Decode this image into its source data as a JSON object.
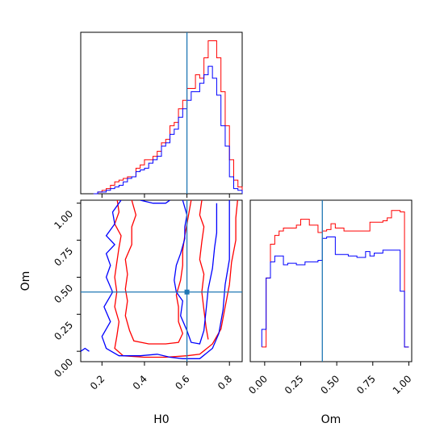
{
  "chart_data": {
    "type": "corner",
    "parameters": [
      "H0",
      "Om"
    ],
    "truths": {
      "H0": 0.6,
      "Om": 0.4
    },
    "truth_color": "#1f77b4",
    "series": [
      {
        "color": "#ff0000"
      },
      {
        "color": "#0000ff"
      }
    ],
    "panels": {
      "h0_hist": {
        "xlim": [
          0.1,
          0.86
        ],
        "bin_edges": [
          0.16,
          0.18,
          0.2,
          0.22,
          0.24,
          0.26,
          0.28,
          0.3,
          0.32,
          0.34,
          0.36,
          0.38,
          0.4,
          0.42,
          0.44,
          0.46,
          0.48,
          0.5,
          0.52,
          0.54,
          0.56,
          0.58,
          0.6,
          0.62,
          0.64,
          0.66,
          0.68,
          0.7,
          0.72,
          0.74,
          0.76,
          0.78,
          0.8,
          0.82,
          0.84,
          0.86
        ],
        "red_counts": [
          0,
          1,
          2,
          3,
          5,
          7,
          8,
          9,
          10,
          10,
          15,
          17,
          20,
          20,
          22,
          25,
          30,
          32,
          40,
          42,
          50,
          55,
          62,
          62,
          70,
          68,
          80,
          90,
          90,
          80,
          60,
          40,
          20,
          8,
          4
        ],
        "blue_counts": [
          0,
          1,
          1,
          2,
          3,
          4,
          5,
          7,
          9,
          10,
          13,
          14,
          15,
          18,
          20,
          22,
          28,
          30,
          35,
          38,
          45,
          50,
          55,
          60,
          60,
          65,
          70,
          75,
          68,
          58,
          40,
          28,
          10,
          3,
          2
        ],
        "ymax": 95
      },
      "om_hist": {
        "xlim": [
          -0.1,
          1.02
        ],
        "bin_edges": [
          -0.02,
          0.01,
          0.04,
          0.07,
          0.1,
          0.13,
          0.16,
          0.19,
          0.22,
          0.25,
          0.28,
          0.31,
          0.34,
          0.37,
          0.4,
          0.43,
          0.46,
          0.49,
          0.52,
          0.55,
          0.58,
          0.61,
          0.64,
          0.67,
          0.7,
          0.73,
          0.76,
          0.79,
          0.82,
          0.85,
          0.88,
          0.91,
          0.94,
          0.97,
          1.0
        ],
        "red_counts": [
          0,
          47,
          70,
          76,
          79,
          81,
          81,
          81,
          83,
          87,
          87,
          83,
          83,
          78,
          79,
          80,
          84,
          81,
          81,
          79,
          79,
          79,
          79,
          79,
          79,
          85,
          85,
          85,
          86,
          88,
          93,
          93,
          92,
          0
        ],
        "blue_counts": [
          12,
          47,
          58,
          62,
          62,
          56,
          57,
          57,
          56,
          56,
          58,
          58,
          58,
          59,
          74,
          75,
          75,
          63,
          63,
          63,
          62,
          62,
          61,
          61,
          65,
          62,
          64,
          64,
          66,
          66,
          66,
          66,
          38,
          0
        ],
        "ymax": 100,
        "ylim_min": -10
      },
      "contour": {
        "xlim": [
          0.1,
          0.86
        ],
        "ylim": [
          -0.07,
          1.02
        ],
        "red_contours": [
          [
            [
              0.27,
              1.04
            ],
            [
              0.28,
              0.94
            ],
            [
              0.26,
              0.86
            ],
            [
              0.29,
              0.78
            ],
            [
              0.28,
              0.7
            ],
            [
              0.27,
              0.6
            ],
            [
              0.26,
              0.5
            ],
            [
              0.27,
              0.4
            ],
            [
              0.26,
              0.3
            ],
            [
              0.28,
              0.2
            ],
            [
              0.27,
              0.1
            ],
            [
              0.26,
              0.02
            ],
            [
              0.3,
              -0.03
            ],
            [
              0.4,
              -0.04
            ],
            [
              0.5,
              -0.04
            ],
            [
              0.6,
              -0.03
            ],
            [
              0.66,
              -0.02
            ],
            [
              0.72,
              0.05
            ],
            [
              0.76,
              0.15
            ],
            [
              0.78,
              0.3
            ],
            [
              0.8,
              0.45
            ],
            [
              0.81,
              0.6
            ],
            [
              0.83,
              0.75
            ],
            [
              0.83,
              0.9
            ],
            [
              0.84,
              1.04
            ]
          ],
          [
            [
              0.34,
              1.02
            ],
            [
              0.36,
              0.92
            ],
            [
              0.34,
              0.84
            ],
            [
              0.34,
              0.72
            ],
            [
              0.31,
              0.62
            ],
            [
              0.32,
              0.52
            ],
            [
              0.31,
              0.42
            ],
            [
              0.32,
              0.34
            ],
            [
              0.31,
              0.24
            ],
            [
              0.33,
              0.14
            ],
            [
              0.35,
              0.07
            ],
            [
              0.42,
              0.05
            ],
            [
              0.5,
              0.05
            ],
            [
              0.56,
              0.06
            ],
            [
              0.58,
              0.12
            ],
            [
              0.56,
              0.2
            ],
            [
              0.56,
              0.3
            ],
            [
              0.55,
              0.38
            ],
            [
              0.57,
              0.48
            ],
            [
              0.58,
              0.58
            ],
            [
              0.58,
              0.68
            ],
            [
              0.59,
              0.78
            ],
            [
              0.6,
              0.86
            ],
            [
              0.61,
              0.94
            ],
            [
              0.62,
              1.02
            ]
          ],
          [
            [
              0.67,
              1.02
            ],
            [
              0.66,
              0.92
            ],
            [
              0.68,
              0.84
            ],
            [
              0.67,
              0.74
            ],
            [
              0.66,
              0.62
            ],
            [
              0.68,
              0.52
            ],
            [
              0.67,
              0.4
            ],
            [
              0.68,
              0.28
            ],
            [
              0.69,
              0.16
            ],
            [
              0.7,
              0.08
            ]
          ]
        ],
        "blue_contours": [
          [
            [
              0.29,
              1.02
            ],
            [
              0.25,
              0.94
            ],
            [
              0.26,
              0.86
            ],
            [
              0.22,
              0.78
            ],
            [
              0.26,
              0.72
            ],
            [
              0.22,
              0.66
            ],
            [
              0.24,
              0.58
            ],
            [
              0.22,
              0.5
            ],
            [
              0.25,
              0.4
            ],
            [
              0.21,
              0.3
            ],
            [
              0.24,
              0.2
            ],
            [
              0.2,
              0.1
            ],
            [
              0.22,
              0.02
            ],
            [
              0.28,
              -0.03
            ],
            [
              0.38,
              -0.03
            ],
            [
              0.46,
              -0.02
            ],
            [
              0.52,
              -0.04
            ],
            [
              0.58,
              -0.05
            ],
            [
              0.66,
              -0.05
            ],
            [
              0.72,
              0.02
            ],
            [
              0.75,
              0.12
            ],
            [
              0.77,
              0.28
            ],
            [
              0.78,
              0.45
            ],
            [
              0.8,
              0.62
            ],
            [
              0.8,
              0.8
            ],
            [
              0.8,
              0.96
            ],
            [
              0.8,
              1.02
            ]
          ],
          [
            [
              0.58,
              1.02
            ],
            [
              0.6,
              0.92
            ],
            [
              0.59,
              0.84
            ],
            [
              0.59,
              0.76
            ],
            [
              0.57,
              0.66
            ],
            [
              0.55,
              0.58
            ],
            [
              0.54,
              0.48
            ],
            [
              0.55,
              0.4
            ],
            [
              0.58,
              0.34
            ],
            [
              0.57,
              0.24
            ],
            [
              0.6,
              0.14
            ],
            [
              0.62,
              0.06
            ],
            [
              0.66,
              0.05
            ],
            [
              0.68,
              0.14
            ],
            [
              0.69,
              0.28
            ],
            [
              0.7,
              0.42
            ],
            [
              0.72,
              0.56
            ],
            [
              0.73,
              0.7
            ],
            [
              0.74,
              0.8
            ],
            [
              0.74,
              0.9
            ],
            [
              0.74,
              1.0
            ]
          ],
          [
            [
              0.1,
              0.0
            ],
            [
              0.12,
              0.02
            ],
            [
              0.14,
              0.0
            ]
          ],
          [
            [
              0.52,
              1.02
            ],
            [
              0.5,
              1.0
            ],
            [
              0.44,
              1.0
            ],
            [
              0.38,
              1.02
            ]
          ]
        ]
      }
    },
    "axes": {
      "h0": {
        "label": "H0",
        "ticks": [
          "0.2",
          "0.4",
          "0.6",
          "0.8"
        ],
        "tick_values": [
          0.2,
          0.4,
          0.6,
          0.8
        ]
      },
      "om": {
        "label": "Om",
        "ticks": [
          "0.00",
          "0.25",
          "0.50",
          "0.75",
          "1.00"
        ],
        "tick_values": [
          0.0,
          0.25,
          0.5,
          0.75,
          1.0
        ]
      }
    }
  }
}
